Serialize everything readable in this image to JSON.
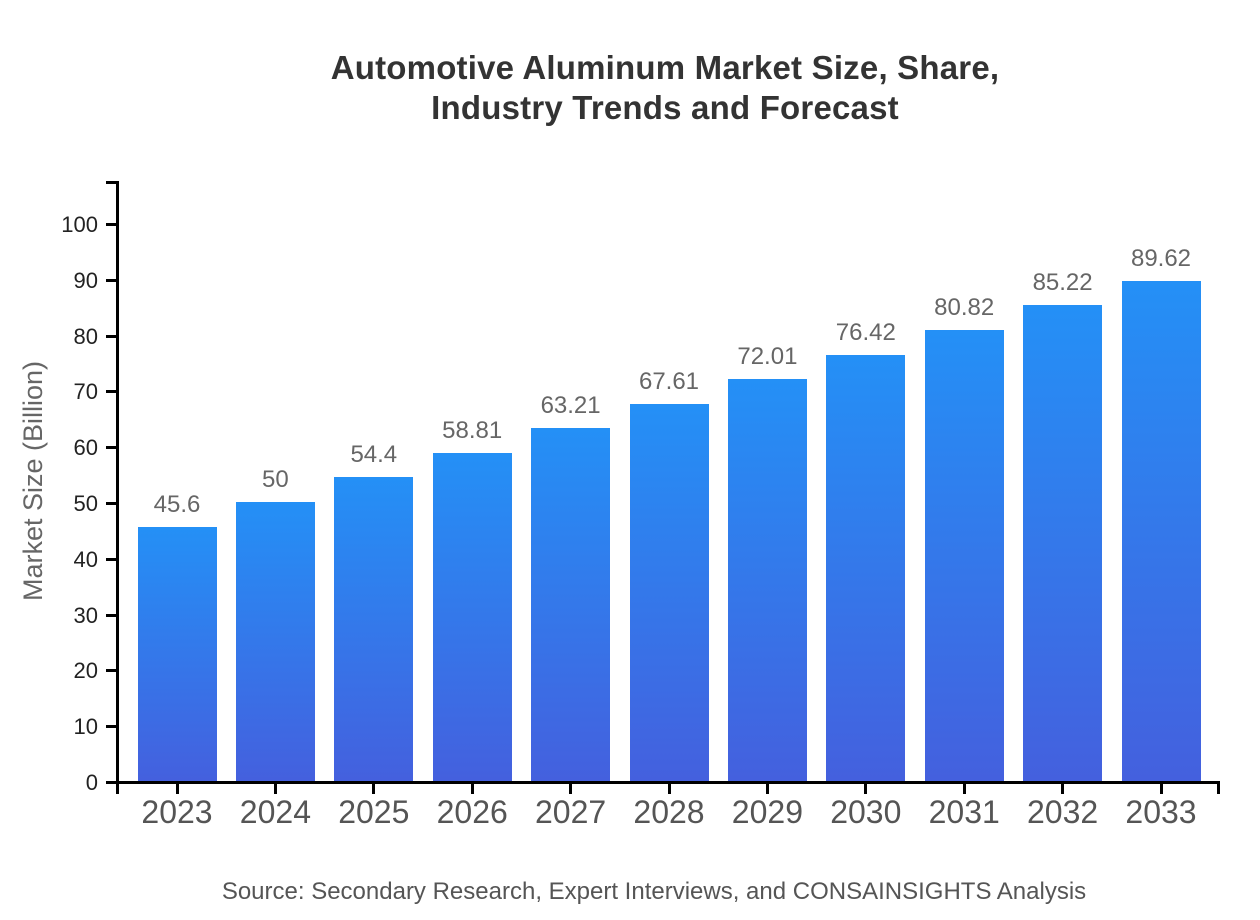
{
  "page": {
    "background": "#ffffff"
  },
  "chart_data": {
    "type": "bar",
    "title": "Automotive Aluminum Market Size, Share,\nIndustry Trends and Forecast",
    "ylabel": "Market Size (Billion)",
    "xlabel": "",
    "categories": [
      "2023",
      "2024",
      "2025",
      "2026",
      "2027",
      "2028",
      "2029",
      "2030",
      "2031",
      "2032",
      "2033"
    ],
    "values": [
      45.6,
      50,
      54.4,
      58.81,
      63.21,
      67.61,
      72.01,
      76.42,
      80.82,
      85.22,
      89.62
    ],
    "value_labels": [
      "45.6",
      "50",
      "54.4",
      "58.81",
      "63.21",
      "67.61",
      "72.01",
      "76.42",
      "80.82",
      "85.22",
      "89.62"
    ],
    "ylim": [
      0,
      100
    ],
    "yticks": [
      0,
      10,
      20,
      30,
      40,
      50,
      60,
      70,
      80,
      90,
      100
    ],
    "grid": false,
    "legend": "none",
    "source_note": "Source: Secondary Research, Expert Interviews, and CONSAINSIGHTS Analysis",
    "colors": {
      "bar_gradient_top": "#2490f6",
      "bar_gradient_bottom": "#4460de",
      "axis": "#000000",
      "title_text": "#333333",
      "ytick_text": "#222222",
      "xtick_text": "#555555",
      "value_label_text": "#666666",
      "ylabel_text": "#666666",
      "source_text": "#555555"
    }
  }
}
